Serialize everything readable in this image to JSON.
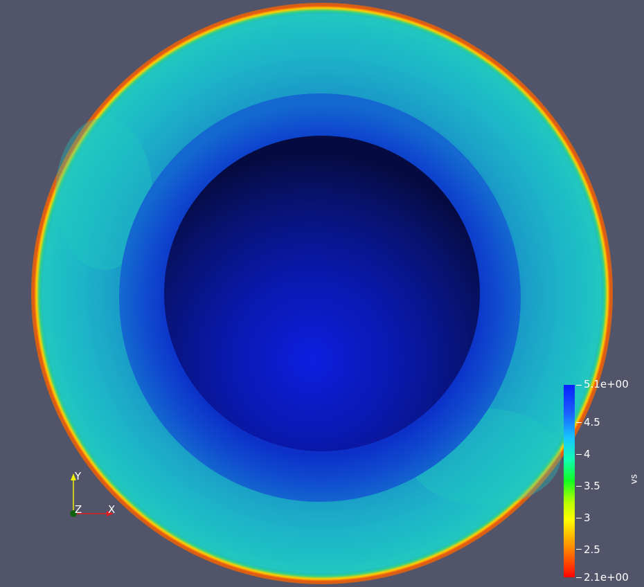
{
  "colorbar": {
    "title": "vs",
    "max_label": "5.1e+00",
    "min_label": "2.1e+00",
    "ticks": [
      "4.5",
      "4",
      "3.5",
      "3",
      "2.5"
    ]
  },
  "axes": {
    "y_label": "Y",
    "z_label": "Z",
    "x_label": "X"
  },
  "colors": {
    "background": "#525469",
    "outer_rim": "#d9621a",
    "shell": "#1aa6c6",
    "inner_band": "#0d3ed0",
    "core": "#0a12a0"
  }
}
